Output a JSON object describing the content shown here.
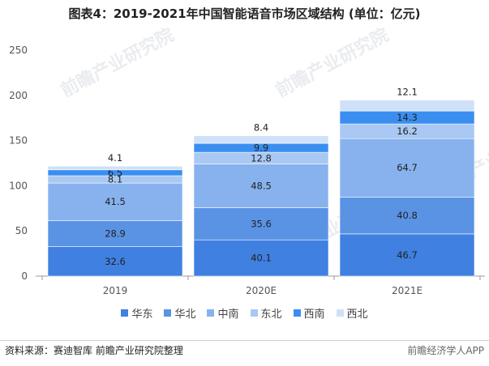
{
  "title": "图表4：2019-2021年中国智能语音市场区域结构 (单位：亿元)",
  "source": "资料来源：赛迪智库 前瞻产业研究院整理",
  "brand": "前瞻经济学人APP",
  "watermark": "前瞻产业研究院",
  "chart_data": {
    "type": "bar",
    "stacked": true,
    "categories": [
      "2019",
      "2020E",
      "2021E"
    ],
    "series": [
      {
        "name": "华东",
        "color": "#3f80e0",
        "values": [
          32.6,
          40.1,
          46.7
        ]
      },
      {
        "name": "华北",
        "color": "#5a93e4",
        "values": [
          28.9,
          35.6,
          40.8
        ]
      },
      {
        "name": "中南",
        "color": "#87b2ee",
        "values": [
          41.5,
          48.5,
          64.7
        ]
      },
      {
        "name": "东北",
        "color": "#a9c8f3",
        "values": [
          8.1,
          12.8,
          16.2
        ]
      },
      {
        "name": "西南",
        "color": "#3a8ef0",
        "values": [
          6.5,
          9.9,
          14.3
        ]
      },
      {
        "name": "西北",
        "color": "#cfe1f8",
        "values": [
          4.1,
          8.4,
          12.1
        ]
      }
    ],
    "ylim": [
      0,
      250
    ],
    "yticks": [
      0,
      50,
      100,
      150,
      200,
      250
    ],
    "grid": false,
    "legend_position": "bottom"
  }
}
